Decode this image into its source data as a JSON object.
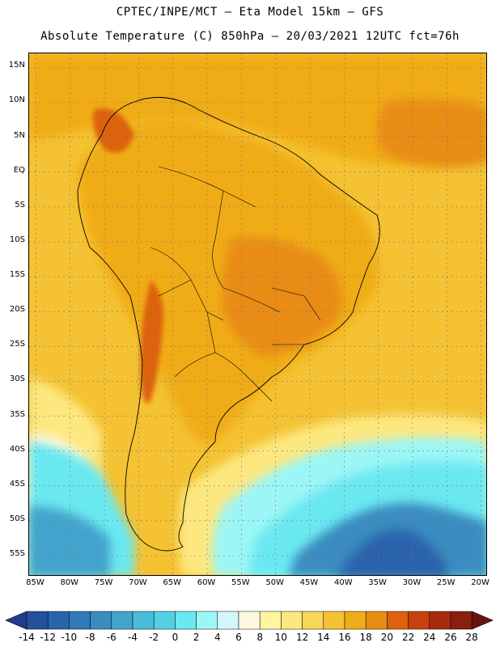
{
  "header": {
    "title_line1": "CPTEC/INPE/MCT –  Eta Model 15km – GFS",
    "title_line2": "Absolute Temperature (C) 850hPa – 20/03/2021 12UTC fct=76h"
  },
  "map": {
    "lat_labels": [
      "15N",
      "10N",
      "5N",
      "EQ",
      "5S",
      "10S",
      "15S",
      "20S",
      "25S",
      "30S",
      "35S",
      "40S",
      "45S",
      "50S",
      "55S"
    ],
    "lat_values": [
      15,
      10,
      5,
      0,
      -5,
      -10,
      -15,
      -20,
      -25,
      -30,
      -35,
      -40,
      -45,
      -50,
      -55
    ],
    "lon_labels": [
      "85W",
      "80W",
      "75W",
      "70W",
      "65W",
      "60W",
      "55W",
      "50W",
      "45W",
      "40W",
      "35W",
      "30W",
      "25W",
      "20W"
    ],
    "lon_values": [
      -85,
      -80,
      -75,
      -70,
      -65,
      -60,
      -55,
      -50,
      -45,
      -40,
      -35,
      -30,
      -25,
      -20
    ],
    "lat_range": [
      -58,
      17
    ],
    "lon_range": [
      -86,
      -19
    ]
  },
  "colorbar": {
    "labels": [
      "-14",
      "-12",
      "-10",
      "-8",
      "-6",
      "-4",
      "-2",
      "0",
      "2",
      "4",
      "6",
      "8",
      "10",
      "12",
      "14",
      "16",
      "18",
      "20",
      "22",
      "24",
      "26",
      "28"
    ],
    "colors": [
      "#1f3d8c",
      "#23509c",
      "#2a64ac",
      "#3278b6",
      "#3a8cc0",
      "#42a4cc",
      "#48bcd8",
      "#54d0e4",
      "#6ae8f0",
      "#9cf6f6",
      "#d4f6fa",
      "#fff8e0",
      "#fff4a0",
      "#fde880",
      "#f8d658",
      "#f4c232",
      "#f0ac18",
      "#e88c14",
      "#dc6210",
      "#c8400c",
      "#a82a0c",
      "#882010",
      "#6a1410"
    ]
  }
}
